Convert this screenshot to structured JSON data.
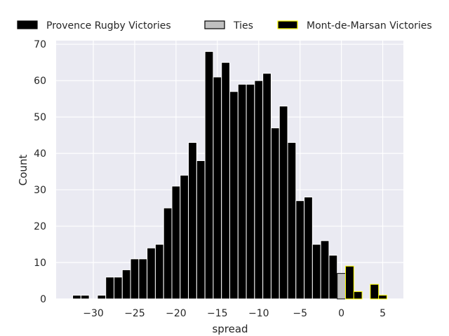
{
  "chart_data": {
    "type": "bar",
    "xlabel": "spread",
    "ylabel": "Count",
    "xlim": [
      -34.5,
      7.5
    ],
    "ylim": [
      0,
      71
    ],
    "xticks": [
      -30,
      -25,
      -20,
      -15,
      -10,
      -5,
      0,
      5
    ],
    "xtick_labels": [
      "−30",
      "−25",
      "−20",
      "−15",
      "−10",
      "−5",
      "0",
      "5"
    ],
    "yticks": [
      0,
      10,
      20,
      30,
      40,
      50,
      60,
      70
    ],
    "ytick_labels": [
      "0",
      "10",
      "20",
      "30",
      "40",
      "50",
      "60",
      "70"
    ],
    "grid": true,
    "legend_position": "top",
    "series": [
      {
        "name": "Provence Rugby Victories",
        "fill": "#000000",
        "edge": "#ffffff",
        "x": [
          -32,
          -31,
          -29,
          -28,
          -27,
          -26,
          -25,
          -24,
          -23,
          -22,
          -21,
          -20,
          -19,
          -18,
          -17,
          -16,
          -15,
          -14,
          -13,
          -12,
          -11,
          -10,
          -9,
          -8,
          -7,
          -6,
          -5,
          -4,
          -3,
          -2,
          -1
        ],
        "values": [
          1,
          1,
          1,
          6,
          6,
          8,
          11,
          11,
          14,
          15,
          25,
          31,
          34,
          43,
          38,
          68,
          61,
          65,
          57,
          59,
          59,
          60,
          62,
          47,
          53,
          43,
          27,
          28,
          15,
          16,
          12
        ]
      },
      {
        "name": "Ties",
        "fill": "#c0c0c0",
        "edge": "#000000",
        "x": [
          0
        ],
        "values": [
          7
        ]
      },
      {
        "name": "Mont-de-Marsan Victories",
        "fill": "#000000",
        "edge": "#ffff00",
        "x": [
          1,
          2,
          4,
          5
        ],
        "values": [
          9,
          2,
          4,
          1
        ]
      }
    ]
  }
}
